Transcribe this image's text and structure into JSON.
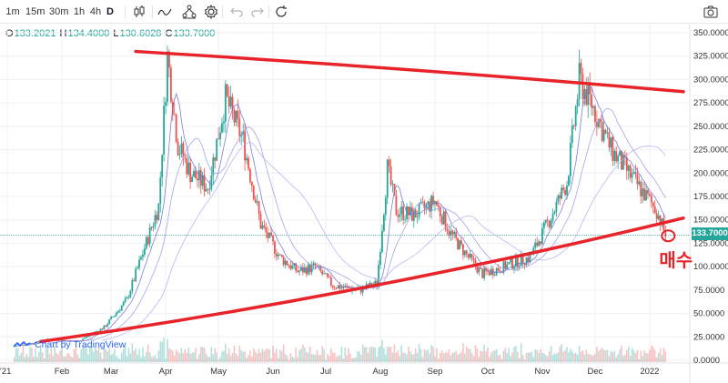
{
  "toolbar": {
    "intervals": [
      "1m",
      "15m",
      "30m",
      "1h",
      "4h",
      "D"
    ],
    "active_interval": "D"
  },
  "ohlc": {
    "o_label": "O",
    "o_value": "133.2021",
    "h_label": "H",
    "h_value": "134.4000",
    "l_label": "L",
    "l_value": "130.6028",
    "c_label": "C",
    "c_value": "133.7000"
  },
  "watermark": "Chart by TradingView",
  "annotation_text": "매수",
  "colors": {
    "up": "#26a69a",
    "down": "#ef5350",
    "trendline": "#e8242a",
    "ma": "#8c8ce6",
    "grid": "#eef0f3",
    "price_line": "#26a69a"
  },
  "chart_data": {
    "type": "candlestick",
    "title": "",
    "xlabel": "",
    "ylabel": "",
    "ylim": [
      0,
      355
    ],
    "y_ticks": [
      "350.0000",
      "325.0000",
      "300.0000",
      "275.0000",
      "250.0000",
      "225.0000",
      "200.0000",
      "175.0000",
      "150.0000",
      "125.0000",
      "100.0000",
      "75.0000",
      "50.0000",
      "25.0000",
      "0.0000"
    ],
    "x_ticks": [
      "'21",
      "Feb",
      "Mar",
      "Apr",
      "May",
      "Jun",
      "Jul",
      "Aug",
      "Sep",
      "Oct",
      "Nov",
      "Dec",
      "2022"
    ],
    "last_price": "133.7000",
    "price_series_approx": [
      {
        "date": "2021-01-05",
        "price": 15
      },
      {
        "date": "2021-01-25",
        "price": 22
      },
      {
        "date": "2021-02-10",
        "price": 20
      },
      {
        "date": "2021-02-25",
        "price": 35
      },
      {
        "date": "2021-03-10",
        "price": 65
      },
      {
        "date": "2021-03-20",
        "price": 120
      },
      {
        "date": "2021-03-28",
        "price": 165
      },
      {
        "date": "2021-04-02",
        "price": 325
      },
      {
        "date": "2021-04-08",
        "price": 230
      },
      {
        "date": "2021-04-15",
        "price": 200
      },
      {
        "date": "2021-04-25",
        "price": 185
      },
      {
        "date": "2021-05-05",
        "price": 280
      },
      {
        "date": "2021-05-15",
        "price": 235
      },
      {
        "date": "2021-05-25",
        "price": 145
      },
      {
        "date": "2021-06-05",
        "price": 110
      },
      {
        "date": "2021-06-15",
        "price": 95
      },
      {
        "date": "2021-06-25",
        "price": 100
      },
      {
        "date": "2021-07-05",
        "price": 80
      },
      {
        "date": "2021-07-20",
        "price": 75
      },
      {
        "date": "2021-07-30",
        "price": 82
      },
      {
        "date": "2021-08-05",
        "price": 205
      },
      {
        "date": "2021-08-10",
        "price": 160
      },
      {
        "date": "2021-08-20",
        "price": 155
      },
      {
        "date": "2021-09-01",
        "price": 170
      },
      {
        "date": "2021-09-10",
        "price": 135
      },
      {
        "date": "2021-09-20",
        "price": 110
      },
      {
        "date": "2021-09-28",
        "price": 92
      },
      {
        "date": "2021-10-10",
        "price": 100
      },
      {
        "date": "2021-10-25",
        "price": 110
      },
      {
        "date": "2021-11-05",
        "price": 150
      },
      {
        "date": "2021-11-15",
        "price": 190
      },
      {
        "date": "2021-11-22",
        "price": 300
      },
      {
        "date": "2021-11-30",
        "price": 270
      },
      {
        "date": "2021-12-10",
        "price": 225
      },
      {
        "date": "2021-12-20",
        "price": 200
      },
      {
        "date": "2021-12-28",
        "price": 180
      },
      {
        "date": "2022-01-05",
        "price": 160
      },
      {
        "date": "2022-01-10",
        "price": 134
      }
    ],
    "trendlines": [
      {
        "name": "",
        "from": {
          "date": "2021-03-15",
          "price": 330
        },
        "to": {
          "date": "2022-01-15",
          "price": 287
        }
      },
      {
        "name": "",
        "from": {
          "date": "2021-01-20",
          "price": 20
        },
        "to": {
          "date": "2022-01-15",
          "price": 152
        }
      }
    ],
    "annotations": [
      {
        "text": "매수",
        "type": "handwritten",
        "near": {
          "date": "2022-01-10",
          "price": 133
        }
      }
    ],
    "legend": "none",
    "grid": true
  }
}
